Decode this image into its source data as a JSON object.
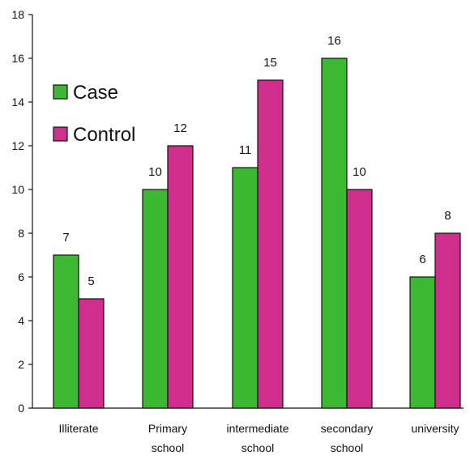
{
  "chart_data": {
    "type": "bar",
    "categories": [
      [
        "Illiterate"
      ],
      [
        "Primary",
        "school"
      ],
      [
        "intermediate",
        "school"
      ],
      [
        "secondary",
        "school"
      ],
      [
        "university"
      ]
    ],
    "series": [
      {
        "name": "Case",
        "color": "#3cb832",
        "values": [
          7,
          10,
          11,
          16,
          6
        ]
      },
      {
        "name": "Control",
        "color": "#cf2e8c",
        "values": [
          5,
          12,
          15,
          10,
          8
        ]
      }
    ],
    "ylim": [
      0,
      18
    ],
    "yticks": [
      0,
      2,
      4,
      6,
      8,
      10,
      12,
      14,
      16,
      18
    ],
    "title": "",
    "xlabel": "",
    "ylabel": "",
    "legend_position": "top-left",
    "grid": false
  }
}
